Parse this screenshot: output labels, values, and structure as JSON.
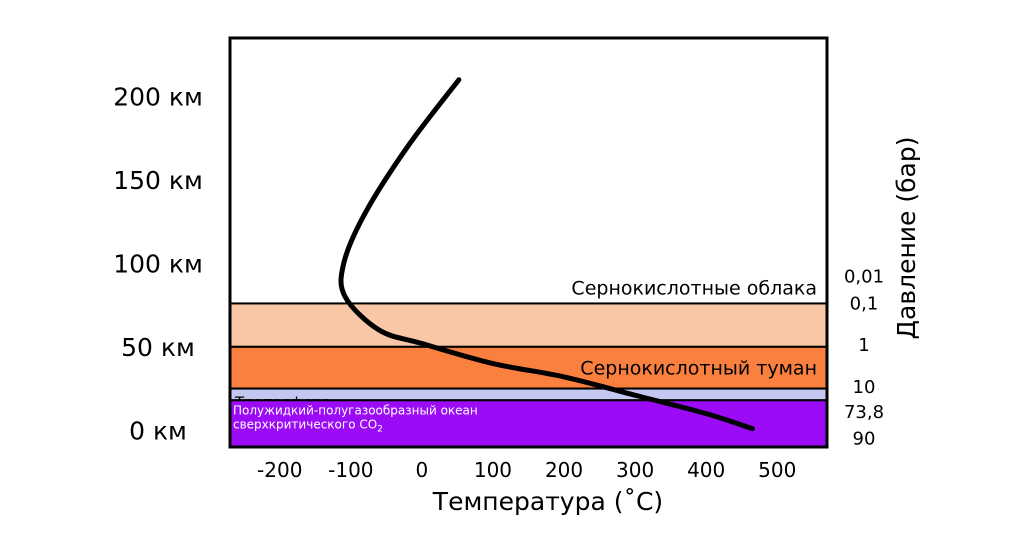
{
  "chart_data": {
    "type": "line",
    "xlabel": "Температура (˚C)",
    "ylabel_right": "Давление (бар)",
    "xlim": [
      -270,
      570
    ],
    "ylim_km": [
      -10,
      235
    ],
    "x_ticks": [
      {
        "value": -200,
        "label": "-200"
      },
      {
        "value": -100,
        "label": "-100"
      },
      {
        "value": 0,
        "label": "0"
      },
      {
        "value": 100,
        "label": "100"
      },
      {
        "value": 200,
        "label": "200"
      },
      {
        "value": 300,
        "label": "300"
      },
      {
        "value": 400,
        "label": "400"
      },
      {
        "value": 500,
        "label": "500"
      }
    ],
    "altitude_ticks": [
      {
        "value": 200,
        "label": "200 км"
      },
      {
        "value": 150,
        "label": "150 км"
      },
      {
        "value": 100,
        "label": "100 км"
      },
      {
        "value": 50,
        "label": "50 км"
      },
      {
        "value": 0,
        "label": "0 км"
      }
    ],
    "pressure_ticks": [
      {
        "km": 92,
        "label": "0,01"
      },
      {
        "km": 76,
        "label": "0,1"
      },
      {
        "km": 51,
        "label": "1"
      },
      {
        "km": 26,
        "label": "10"
      },
      {
        "km": 11,
        "label": "73,8"
      },
      {
        "km": -5,
        "label": "90"
      }
    ],
    "layers": [
      {
        "name": "Сернокислотные облака",
        "bottom": 50,
        "top": 76,
        "color": "#f9c6a6",
        "label_align": "right",
        "label_above": true
      },
      {
        "name": "Сернокислотный туман",
        "bottom": 25,
        "top": 50,
        "color": "#f9803f",
        "label_align": "right",
        "label_above": false
      },
      {
        "name": "Тропосфера",
        "bottom": 18,
        "top": 25,
        "color": "#c3c8f1",
        "label_align": "left",
        "label_above": false
      },
      {
        "name_lines": [
          "Полужидкий-полугазообразный океан",
          "сверхкритического CO",
          "2"
        ],
        "bottom": 0,
        "top": 18,
        "color": "#9b0bf5"
      }
    ],
    "series": [
      {
        "points": [
          {
            "x": 52,
            "y": 210
          },
          {
            "x": -20,
            "y": 170
          },
          {
            "x": -80,
            "y": 130
          },
          {
            "x": -110,
            "y": 100
          },
          {
            "x": -108,
            "y": 80
          },
          {
            "x": -60,
            "y": 60
          },
          {
            "x": 0,
            "y": 52
          },
          {
            "x": 100,
            "y": 40
          },
          {
            "x": 200,
            "y": 32
          },
          {
            "x": 300,
            "y": 21
          },
          {
            "x": 400,
            "y": 10
          },
          {
            "x": 465,
            "y": 1
          }
        ],
        "color": "#000000"
      }
    ]
  }
}
